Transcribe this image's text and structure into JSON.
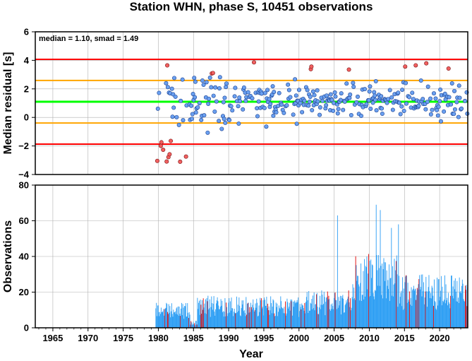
{
  "title": "Station WHN, phase S, 10451 observations",
  "chart_data": [
    {
      "type": "scatter",
      "ylabel": "Median residual [s]",
      "xlim": [
        1962.5,
        2024.0
      ],
      "ylim": [
        -4,
        6
      ],
      "yticks": [
        "−4",
        "−2",
        "0",
        "2",
        "4",
        "6"
      ],
      "annotation": "median = 1.10, smad = 1.49",
      "grid": true,
      "reference_lines": [
        {
          "y": 4.07,
          "color": "#ff0000"
        },
        {
          "y": 2.59,
          "color": "#ffa500"
        },
        {
          "y": 1.1,
          "color": "#00ff00"
        },
        {
          "y": -0.39,
          "color": "#ffa500"
        },
        {
          "y": -1.87,
          "color": "#ff0000"
        }
      ],
      "colors": {
        "normal_fill": "#6aa0f0",
        "outlier_fill": "#f06060",
        "edge": "#1a3f8f"
      },
      "points_note": "points generated procedurally per month from 1979.6 to 2024.0"
    },
    {
      "type": "bar",
      "xlabel": "Year",
      "ylabel": "Observations",
      "xlim": [
        1962.5,
        2024.0
      ],
      "ylim": [
        0,
        80
      ],
      "yticks": [
        "0",
        "20",
        "40",
        "60",
        "80"
      ],
      "xticks": [
        "1965",
        "1970",
        "1975",
        "1980",
        "1985",
        "1990",
        "1995",
        "2000",
        "2005",
        "2010",
        "2015",
        "2020"
      ],
      "grid": true,
      "colors": {
        "bar": "#2a9df4",
        "highlight": "#e00000"
      },
      "peaks": [
        {
          "x": 2005.4,
          "y": 63
        },
        {
          "x": 2010.9,
          "y": 69
        },
        {
          "x": 2011.5,
          "y": 66
        },
        {
          "x": 2014.1,
          "y": 58
        },
        {
          "x": 2013.1,
          "y": 56
        }
      ]
    }
  ]
}
